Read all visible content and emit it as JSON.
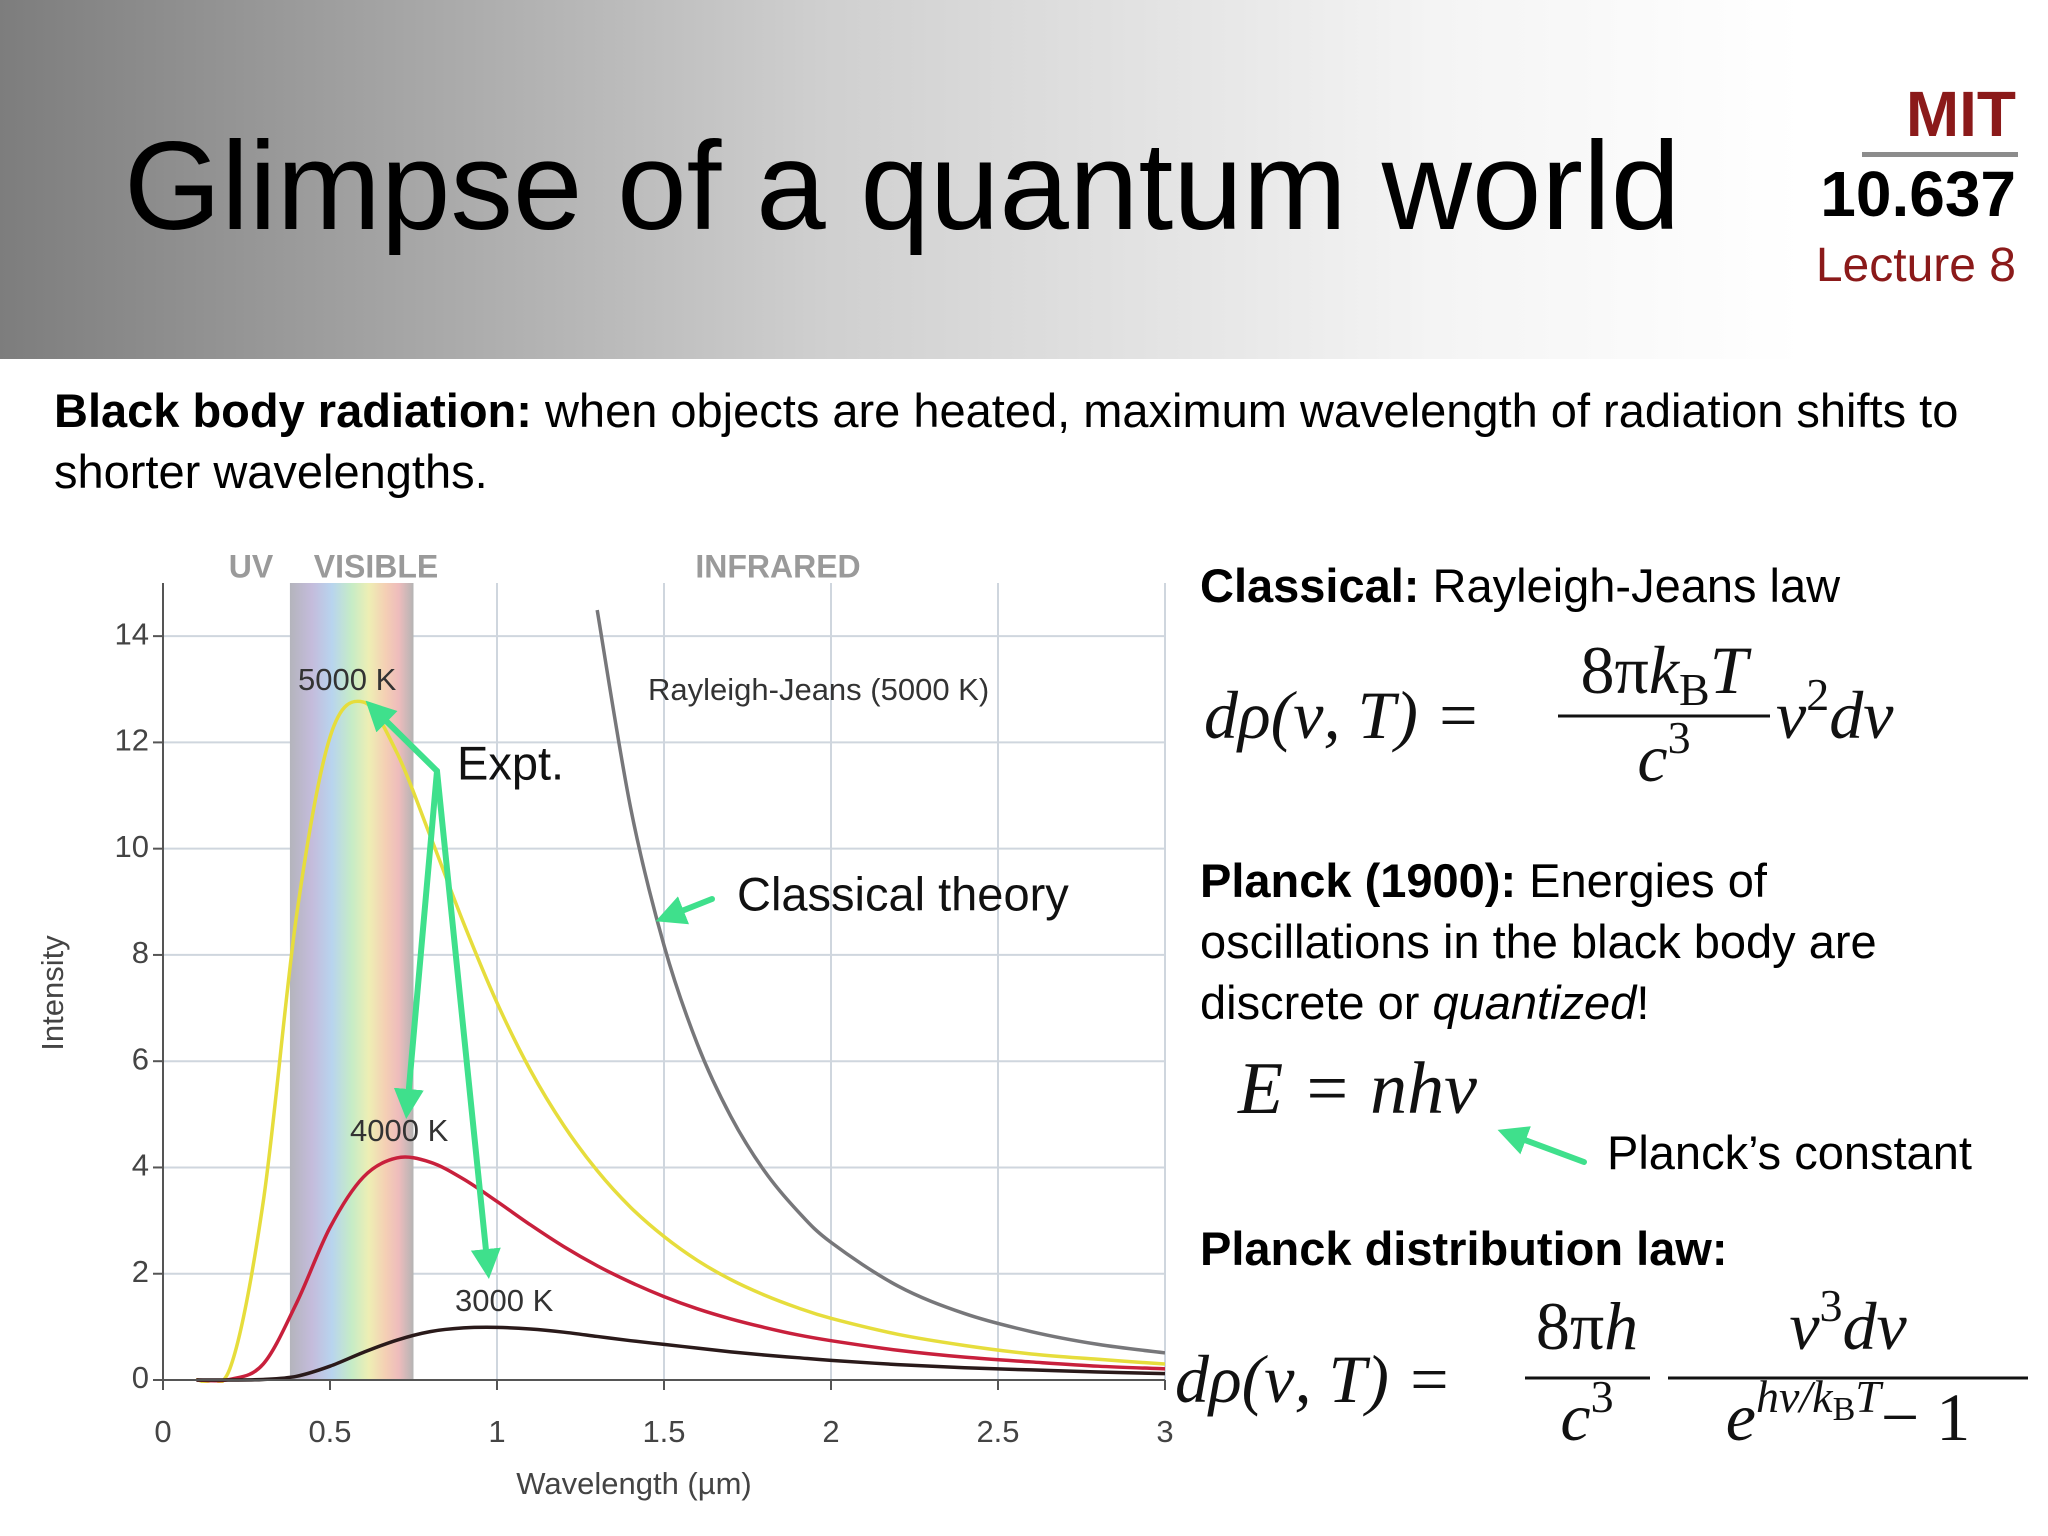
{
  "header": {
    "title": "Glimpse of a quantum world",
    "institution": "MIT",
    "course": "10.637",
    "lecture": "Lecture 8"
  },
  "intro": {
    "term": "Black body radiation:",
    "text": "when objects are heated, maximum wavelength of radiation shifts to shorter wavelengths."
  },
  "chart_data": {
    "type": "line",
    "x_label": "Wavelength (µm)",
    "y_label": "Intensity",
    "x": [
      0.1,
      0.2,
      0.3,
      0.4,
      0.5,
      0.6,
      0.7,
      0.8,
      0.9,
      1.0,
      1.1,
      1.2,
      1.3,
      1.4,
      1.5,
      1.6,
      1.7,
      1.8,
      1.9,
      2.0,
      2.2,
      2.4,
      2.6,
      2.8,
      3.0
    ],
    "series": [
      {
        "name": "5000 K",
        "color": "#e6dd3c",
        "values": [
          0,
          0.21,
          3.35,
          8.75,
          12.1,
          12.76,
          11.81,
          10.24,
          8.6,
          7.1,
          5.83,
          4.79,
          3.94,
          3.25,
          2.7,
          2.25,
          1.89,
          1.6,
          1.36,
          1.16,
          0.86,
          0.65,
          0.49,
          0.39,
          0.3
        ]
      },
      {
        "name": "4000 K",
        "color": "#c8203c",
        "values": [
          0,
          0.01,
          0.3,
          1.45,
          2.87,
          3.82,
          4.18,
          4.1,
          3.78,
          3.36,
          2.92,
          2.51,
          2.15,
          1.84,
          1.57,
          1.34,
          1.15,
          0.99,
          0.85,
          0.74,
          0.56,
          0.43,
          0.34,
          0.26,
          0.21
        ]
      },
      {
        "name": "3000 K",
        "color": "#2a1a1a",
        "values": [
          0,
          0,
          0.01,
          0.07,
          0.26,
          0.52,
          0.75,
          0.91,
          0.98,
          0.99,
          0.96,
          0.9,
          0.82,
          0.74,
          0.67,
          0.6,
          0.53,
          0.47,
          0.42,
          0.37,
          0.29,
          0.23,
          0.19,
          0.15,
          0.12
        ]
      },
      {
        "name": "Rayleigh-Jeans (5000 K)",
        "color": "#77777a",
        "values": [
          null,
          null,
          null,
          null,
          null,
          null,
          null,
          null,
          null,
          null,
          null,
          null,
          14.49,
          10.77,
          8.18,
          6.32,
          4.96,
          3.94,
          3.18,
          2.59,
          1.77,
          1.25,
          0.91,
          0.67,
          0.51
        ]
      }
    ],
    "xlim": [
      0,
      3
    ],
    "xticks": [
      0,
      0.5,
      1,
      1.5,
      2,
      2.5,
      3
    ],
    "ylim": [
      0,
      15
    ],
    "yticks": [
      0,
      2,
      4,
      6,
      8,
      10,
      12,
      14
    ],
    "grid": true,
    "visible_band": [
      0.38,
      0.75
    ],
    "region_labels": [
      "UV",
      "VISIBLE",
      "INFRARED"
    ],
    "annotations": [
      "Expt.",
      "Classical theory"
    ]
  },
  "classical": {
    "heading": "Classical:",
    "text": "Rayleigh-Jeans law",
    "equation": {
      "lhs": "dρ(ν, T) =",
      "numerator": [
        "8π",
        "k",
        "B",
        "T"
      ],
      "denominator": [
        "c",
        "3"
      ],
      "tail": [
        "ν",
        "2",
        "dν"
      ]
    }
  },
  "planck": {
    "heading": "Planck (1900):",
    "text_before": "Energies of oscillations in the black body are discrete or",
    "emphasis": "quantized",
    "text_after": "!",
    "equation": "E = nhν",
    "annotation": "Planck’s constant"
  },
  "distribution": {
    "heading": "Planck distribution law:",
    "equation": {
      "lhs": "dρ(ν, T) =",
      "numerator1": [
        "8π",
        "h"
      ],
      "denominator1": [
        "c",
        "3"
      ],
      "numerator2": [
        "ν",
        "3",
        "dν"
      ],
      "denominator2": [
        "e",
        "hν/k",
        "B",
        "T",
        "− 1"
      ]
    }
  }
}
